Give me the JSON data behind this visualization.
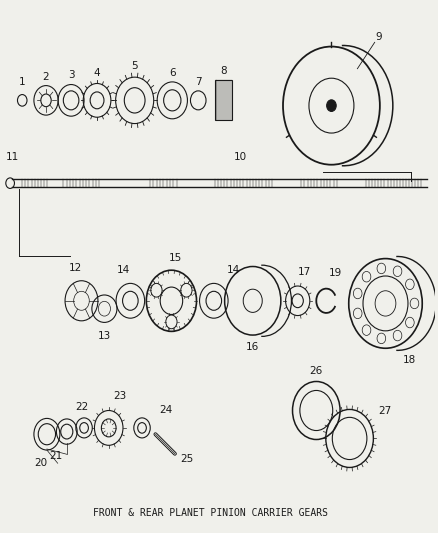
{
  "title": "FRONT & REAR PLANET PINION CARRIER GEARS",
  "bg_color": "#f0f0eb",
  "line_color": "#1a1a1a",
  "label_color": "#1a1a1a",
  "font_size": 7.5
}
